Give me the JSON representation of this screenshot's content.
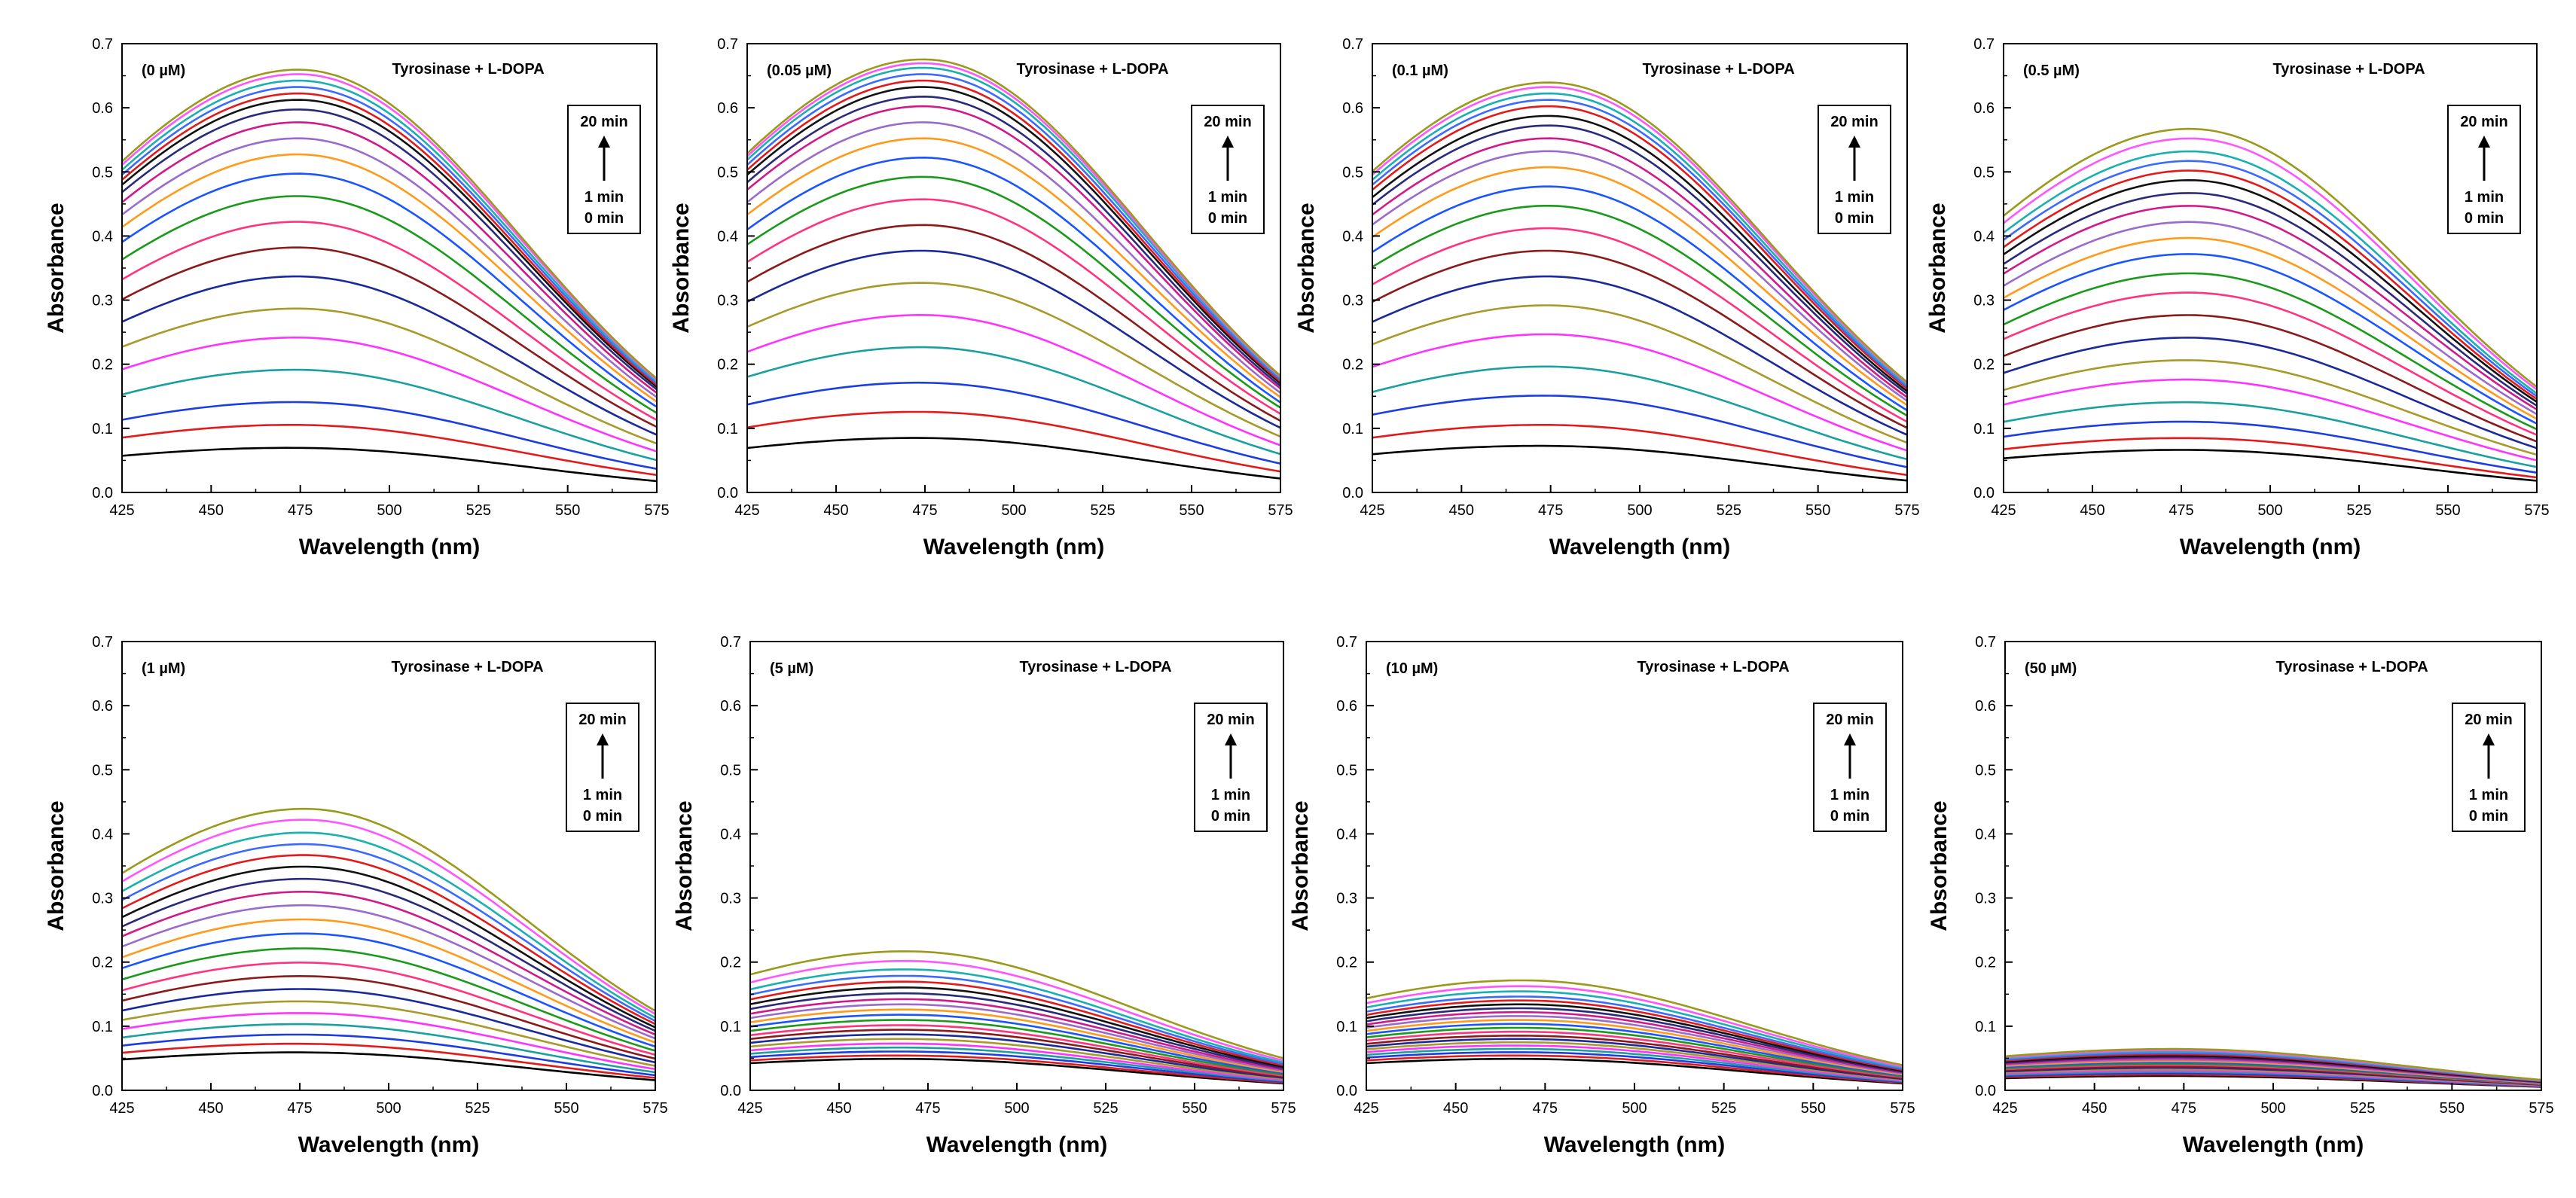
{
  "figure": {
    "description_panels": 8
  },
  "colors": {
    "series": [
      "#000000",
      "#e41a1a",
      "#1a3de4",
      "#1aa0a0",
      "#ff33ff",
      "#a89a2a",
      "#1a2a9a",
      "#8b1a1a",
      "#ff3380",
      "#1a9a1a",
      "#1a55ff",
      "#ff9a1a",
      "#9a6acc",
      "#d01a8a",
      "#2a2a7a",
      "#111111",
      "#e41a1a",
      "#3a6aff",
      "#1ab0b0",
      "#ff55ff",
      "#9a9a1a"
    ]
  },
  "chart_data": [
    {
      "type": "line",
      "title": "",
      "concentration_label": "(0 µM)",
      "annotation": "Tyrosinase + L-DOPA",
      "legend": {
        "top": "20 min",
        "mid": "1 min",
        "bottom": "0 min",
        "arrow": "↑"
      },
      "xlabel": "Wavelength (nm)",
      "ylabel": "Absorbance",
      "xlim": [
        425,
        575
      ],
      "ylim": [
        0,
        0.7
      ],
      "xticks": [
        "425",
        "450",
        "475",
        "500",
        "525",
        "550",
        "575"
      ],
      "yticks": [
        "0.0",
        "0.1",
        "0.2",
        "0.3",
        "0.4",
        "0.5",
        "0.6",
        "0.7"
      ],
      "peak_wavelength": 475,
      "spectrum_shape": "broad peak; A(425)=0.77*peak, A(575)=0.34*peak",
      "series_count": 21,
      "peak_values": [
        0.065,
        0.1,
        0.135,
        0.185,
        0.235,
        0.28,
        0.33,
        0.375,
        0.415,
        0.455,
        0.49,
        0.52,
        0.545,
        0.57,
        0.59,
        0.605,
        0.615,
        0.625,
        0.635,
        0.645,
        0.652
      ]
    },
    {
      "type": "line",
      "concentration_label": "(0.05 µM)",
      "annotation": "Tyrosinase + L-DOPA",
      "legend": {
        "top": "20 min",
        "mid": "1 min",
        "bottom": "0 min",
        "arrow": "↑"
      },
      "xlabel": "Wavelength (nm)",
      "ylabel": "Absorbance",
      "xlim": [
        425,
        575
      ],
      "ylim": [
        0,
        0.7
      ],
      "xticks": [
        "425",
        "450",
        "475",
        "500",
        "525",
        "550",
        "575"
      ],
      "yticks": [
        "0.0",
        "0.1",
        "0.2",
        "0.3",
        "0.4",
        "0.5",
        "0.6",
        "0.7"
      ],
      "peak_wavelength": 475,
      "series_count": 21,
      "peak_values": [
        0.08,
        0.12,
        0.165,
        0.22,
        0.27,
        0.32,
        0.37,
        0.41,
        0.45,
        0.485,
        0.515,
        0.545,
        0.57,
        0.595,
        0.61,
        0.625,
        0.635,
        0.645,
        0.655,
        0.662,
        0.668
      ]
    },
    {
      "type": "line",
      "concentration_label": "(0.1 µM)",
      "annotation": "Tyrosinase + L-DOPA",
      "legend": {
        "top": "20 min",
        "mid": "1 min",
        "bottom": "0 min",
        "arrow": "↑"
      },
      "xlabel": "Wavelength (nm)",
      "ylabel": "Absorbance",
      "xlim": [
        425,
        575
      ],
      "ylim": [
        0,
        0.7
      ],
      "xticks": [
        "425",
        "450",
        "475",
        "500",
        "525",
        "550",
        "575"
      ],
      "yticks": [
        "0.0",
        "0.1",
        "0.2",
        "0.3",
        "0.4",
        "0.5",
        "0.6",
        "0.7"
      ],
      "peak_wavelength": 475,
      "series_count": 21,
      "peak_values": [
        0.068,
        0.1,
        0.145,
        0.19,
        0.24,
        0.285,
        0.33,
        0.37,
        0.405,
        0.44,
        0.47,
        0.5,
        0.525,
        0.545,
        0.565,
        0.58,
        0.595,
        0.605,
        0.615,
        0.625,
        0.632
      ]
    },
    {
      "type": "line",
      "concentration_label": "(0.5 µM)",
      "annotation": "Tyrosinase + L-DOPA",
      "legend": {
        "top": "20 min",
        "mid": "1 min",
        "bottom": "0 min",
        "arrow": "↑"
      },
      "xlabel": "Wavelength (nm)",
      "ylabel": "Absorbance",
      "xlim": [
        425,
        575
      ],
      "ylim": [
        0,
        0.7
      ],
      "xticks": [
        "425",
        "450",
        "475",
        "500",
        "525",
        "550",
        "575"
      ],
      "yticks": [
        "0.0",
        "0.1",
        "0.2",
        "0.3",
        "0.4",
        "0.5",
        "0.6",
        "0.7"
      ],
      "peak_wavelength": 478,
      "series_count": 21,
      "peak_values": [
        0.062,
        0.08,
        0.105,
        0.135,
        0.17,
        0.2,
        0.235,
        0.27,
        0.305,
        0.335,
        0.365,
        0.39,
        0.415,
        0.44,
        0.46,
        0.48,
        0.495,
        0.51,
        0.525,
        0.545,
        0.56
      ]
    },
    {
      "type": "line",
      "concentration_label": "(1 µM)",
      "annotation": "Tyrosinase + L-DOPA",
      "legend": {
        "top": "20 min",
        "mid": "1 min",
        "bottom": "0 min",
        "arrow": "↑"
      },
      "xlabel": "Wavelength (nm)",
      "ylabel": "Absorbance",
      "xlim": [
        425,
        575
      ],
      "ylim": [
        0,
        0.7
      ],
      "xticks": [
        "425",
        "450",
        "475",
        "500",
        "525",
        "550",
        "575"
      ],
      "yticks": [
        "0.0",
        "0.1",
        "0.2",
        "0.3",
        "0.4",
        "0.5",
        "0.6",
        "0.7"
      ],
      "peak_wavelength": 477,
      "series_count": 21,
      "peak_values": [
        0.055,
        0.068,
        0.082,
        0.098,
        0.115,
        0.133,
        0.152,
        0.172,
        0.193,
        0.215,
        0.238,
        0.26,
        0.282,
        0.303,
        0.323,
        0.342,
        0.36,
        0.377,
        0.395,
        0.415,
        0.432
      ]
    },
    {
      "type": "line",
      "concentration_label": "(5 µM)",
      "annotation": "Tyrosinase + L-DOPA",
      "legend": {
        "top": "20 min",
        "mid": "1 min",
        "bottom": "0 min",
        "arrow": "↑"
      },
      "xlabel": "Wavelength (nm)",
      "ylabel": "Absorbance",
      "xlim": [
        425,
        575
      ],
      "ylim": [
        0,
        0.7
      ],
      "xticks": [
        "425",
        "450",
        "475",
        "500",
        "525",
        "550",
        "575"
      ],
      "yticks": [
        "0.0",
        "0.1",
        "0.2",
        "0.3",
        "0.4",
        "0.5",
        "0.6",
        "0.7"
      ],
      "peak_wavelength": 470,
      "series_count": 21,
      "peak_values": [
        0.045,
        0.05,
        0.056,
        0.062,
        0.068,
        0.075,
        0.082,
        0.089,
        0.096,
        0.104,
        0.112,
        0.12,
        0.128,
        0.136,
        0.145,
        0.154,
        0.163,
        0.172,
        0.182,
        0.195,
        0.21
      ]
    },
    {
      "type": "line",
      "concentration_label": "(10 µM)",
      "annotation": "Tyrosinase + L-DOPA",
      "legend": {
        "top": "20 min",
        "mid": "1 min",
        "bottom": "0 min",
        "arrow": "↑"
      },
      "xlabel": "Wavelength (nm)",
      "ylabel": "Absorbance",
      "xlim": [
        425,
        575
      ],
      "ylim": [
        0,
        0.7
      ],
      "xticks": [
        "425",
        "450",
        "475",
        "500",
        "525",
        "550",
        "575"
      ],
      "yticks": [
        "0.0",
        "0.1",
        "0.2",
        "0.3",
        "0.4",
        "0.5",
        "0.6",
        "0.7"
      ],
      "peak_wavelength": 470,
      "series_count": 21,
      "peak_values": [
        0.045,
        0.05,
        0.055,
        0.06,
        0.065,
        0.07,
        0.075,
        0.08,
        0.086,
        0.092,
        0.098,
        0.104,
        0.11,
        0.116,
        0.122,
        0.128,
        0.134,
        0.14,
        0.148,
        0.156,
        0.165
      ]
    },
    {
      "type": "line",
      "concentration_label": "(50 µM)",
      "annotation": "Tyrosinase + L-DOPA",
      "legend": {
        "top": "20 min",
        "mid": "1 min",
        "bottom": "0 min",
        "arrow": "↑"
      },
      "xlabel": "Wavelength (nm)",
      "ylabel": "Absorbance",
      "xlim": [
        425,
        575
      ],
      "ylim": [
        0,
        0.7
      ],
      "xticks": [
        "425",
        "450",
        "475",
        "500",
        "525",
        "550",
        "575"
      ],
      "yticks": [
        "0.0",
        "0.1",
        "0.2",
        "0.3",
        "0.4",
        "0.5",
        "0.6",
        "0.7"
      ],
      "peak_wavelength": 475,
      "series_count": 21,
      "peak_values": [
        0.02,
        0.022,
        0.024,
        0.026,
        0.028,
        0.03,
        0.032,
        0.034,
        0.036,
        0.038,
        0.04,
        0.042,
        0.044,
        0.046,
        0.048,
        0.05,
        0.052,
        0.054,
        0.056,
        0.058,
        0.06
      ]
    }
  ]
}
